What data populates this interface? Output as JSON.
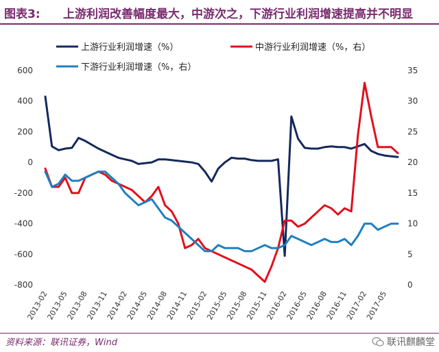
{
  "title": {
    "number": "图表3:",
    "text": "上游利润改善幅度最大，中游次之，下游行业利润增速提高并不明显"
  },
  "source": "资料来源：联讯证券，Wind",
  "watermark": "联讯麒麟堂",
  "colors": {
    "upstream": "#13285c",
    "midstream": "#e30e1b",
    "downstream": "#1f7fc0",
    "accent": "#7a2b6e"
  },
  "chart_data": {
    "type": "line",
    "title": "",
    "x_ticks": [
      "2013-02",
      "2013-05",
      "2013-08",
      "2013-11",
      "2014-02",
      "2014-05",
      "2014-08",
      "2014-11",
      "2015-02",
      "2015-05",
      "2015-08",
      "2015-11",
      "2016-02",
      "2016-05",
      "2016-08",
      "2016-11",
      "2017-02",
      "2017-05"
    ],
    "x": [
      "2013-02",
      "2013-03",
      "2013-04",
      "2013-05",
      "2013-06",
      "2013-07",
      "2013-08",
      "2013-09",
      "2013-10",
      "2013-11",
      "2013-12",
      "2014-01",
      "2014-02",
      "2014-03",
      "2014-04",
      "2014-05",
      "2014-06",
      "2014-07",
      "2014-08",
      "2014-09",
      "2014-10",
      "2014-11",
      "2014-12",
      "2015-01",
      "2015-02",
      "2015-03",
      "2015-04",
      "2015-05",
      "2015-06",
      "2015-07",
      "2015-08",
      "2015-09",
      "2015-10",
      "2015-11",
      "2015-12",
      "2016-01",
      "2016-02",
      "2016-03",
      "2016-04",
      "2016-05",
      "2016-06",
      "2016-07",
      "2016-08",
      "2016-09",
      "2016-10",
      "2016-11",
      "2016-12",
      "2017-01",
      "2017-02",
      "2017-03",
      "2017-04",
      "2017-05",
      "2017-06",
      "2017-07"
    ],
    "y_left": {
      "ticks": [
        600,
        400,
        200,
        0,
        -200,
        -400,
        -600,
        -800
      ],
      "lim": [
        -800,
        600
      ]
    },
    "y_right": {
      "ticks": [
        35,
        30,
        25,
        20,
        15,
        10,
        5,
        0
      ],
      "lim": [
        0,
        35
      ]
    },
    "legend": [
      {
        "name": "上游行业利润增速（%）",
        "color": "#13285c"
      },
      {
        "name": "中游行业利润增速（%，右）",
        "color": "#e30e1b"
      },
      {
        "name": "下游行业利润增速（%，右）",
        "color": "#1f7fc0"
      }
    ],
    "series": [
      {
        "name": "上游行业利润增速（%）",
        "axis": "left",
        "color": "#13285c",
        "values": [
          430,
          105,
          80,
          90,
          95,
          160,
          140,
          115,
          90,
          70,
          50,
          30,
          20,
          10,
          -10,
          -5,
          0,
          20,
          20,
          15,
          10,
          5,
          0,
          -10,
          -60,
          -125,
          -40,
          0,
          30,
          25,
          25,
          15,
          10,
          10,
          10,
          20,
          -610,
          300,
          155,
          95,
          90,
          90,
          100,
          105,
          100,
          100,
          90,
          105,
          120,
          75,
          55,
          45,
          40,
          35
        ]
      },
      {
        "name": "中游行业利润增速（%，右）",
        "axis": "right",
        "color": "#e30e1b",
        "values": [
          19,
          16,
          16,
          17.5,
          15,
          15,
          17.5,
          18,
          18.5,
          18,
          17,
          16.5,
          16,
          15.5,
          14.5,
          13.5,
          14.5,
          16,
          13,
          12,
          10,
          6,
          6.5,
          7.5,
          6,
          5.5,
          5,
          4.5,
          4,
          3.5,
          3,
          2.5,
          1.5,
          0.5,
          3,
          6,
          10.5,
          10.5,
          9.5,
          10,
          11,
          12,
          13,
          12.5,
          11.5,
          12.5,
          12,
          24.5,
          33,
          27.5,
          22.5,
          22.5,
          22.5,
          21.5
        ]
      },
      {
        "name": "下游行业利润增速（%，右）",
        "axis": "right",
        "color": "#1f7fc0",
        "values": [
          18.5,
          16,
          16.5,
          18,
          17,
          17,
          17.5,
          18,
          18.5,
          18.5,
          17.5,
          16.5,
          15,
          14,
          13,
          13.5,
          14,
          12.5,
          11,
          10.5,
          9.5,
          8.5,
          7.5,
          6.5,
          5.5,
          5.5,
          6.5,
          6,
          6,
          6,
          5.5,
          5.5,
          6,
          6.5,
          6,
          6,
          6.5,
          8,
          7.5,
          7,
          6.5,
          7,
          7.5,
          7,
          7,
          7.5,
          6.5,
          8,
          10,
          10,
          9,
          9.5,
          10,
          10
        ]
      }
    ]
  }
}
